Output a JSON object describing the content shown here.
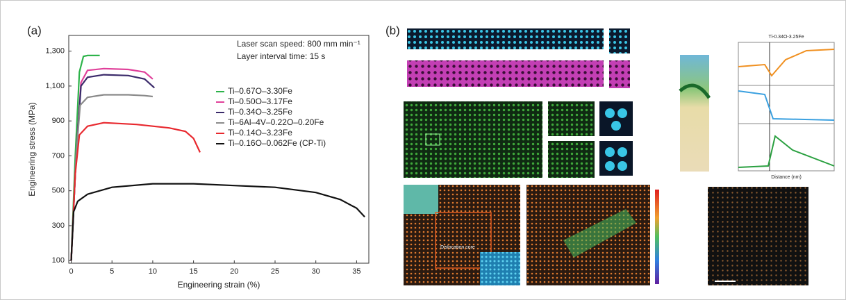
{
  "chart_data": {
    "type": "line",
    "panel_label": "(a)",
    "x_label": "Engineering strain (%)",
    "y_label": "Engineering stress (MPa)",
    "annotations": [
      "Laser scan speed: 800 mm min⁻¹",
      "Layer interval time: 15 s"
    ],
    "xlim": [
      -0.3,
      36.5
    ],
    "ylim": [
      85,
      1390
    ],
    "xticks": [
      0,
      5,
      10,
      15,
      20,
      25,
      30,
      35
    ],
    "yticks": [
      100,
      300,
      500,
      700,
      900,
      {
        "value": 1100,
        "label": "1,100"
      },
      {
        "value": 1300,
        "label": "1,300"
      }
    ],
    "grid": false,
    "series": [
      {
        "name": "Ti–0.67O–3.30Fe",
        "color": "#2db34a",
        "x": [
          0,
          0.5,
          1,
          1.5,
          2,
          3.5
        ],
        "values": [
          100,
          700,
          1180,
          1270,
          1275,
          1275
        ]
      },
      {
        "name": "Ti–0.50O–3.17Fe",
        "color": "#e0409a",
        "x": [
          0,
          0.6,
          1.2,
          2,
          4,
          7,
          9,
          10
        ],
        "values": [
          100,
          700,
          1120,
          1190,
          1200,
          1195,
          1180,
          1140
        ]
      },
      {
        "name": "Ti–0.34O–3.25Fe",
        "color": "#3a2a6a",
        "x": [
          0,
          0.6,
          1.2,
          2,
          4,
          7,
          9,
          10.2
        ],
        "values": [
          100,
          700,
          1100,
          1150,
          1165,
          1160,
          1140,
          1090
        ]
      },
      {
        "name": "Ti–6Al–4V–0.22O–0.20Fe",
        "color": "#8a8a8a",
        "x": [
          0,
          0.6,
          1.1,
          2,
          4,
          7,
          9,
          10
        ],
        "values": [
          100,
          700,
          990,
          1035,
          1050,
          1050,
          1045,
          1040
        ]
      },
      {
        "name": "Ti–0.14O–3.23Fe",
        "color": "#e8282e",
        "x": [
          0,
          0.5,
          1,
          2,
          4,
          8,
          12,
          14,
          15,
          15.8
        ],
        "values": [
          100,
          600,
          820,
          870,
          890,
          880,
          860,
          840,
          800,
          720
        ]
      },
      {
        "name": "Ti–0.16O–0.062Fe (CP-Ti)",
        "color": "#111111",
        "x": [
          0,
          0.3,
          0.8,
          2,
          5,
          10,
          15,
          20,
          25,
          30,
          33,
          35,
          36
        ],
        "values": [
          100,
          380,
          440,
          480,
          520,
          540,
          540,
          530,
          520,
          490,
          450,
          400,
          350
        ]
      }
    ]
  },
  "panel_b": {
    "label": "(b)",
    "annotations": [
      "Dislocation core",
      "Ti-0.34O-3.25Fe",
      "Distance (nm)"
    ]
  }
}
